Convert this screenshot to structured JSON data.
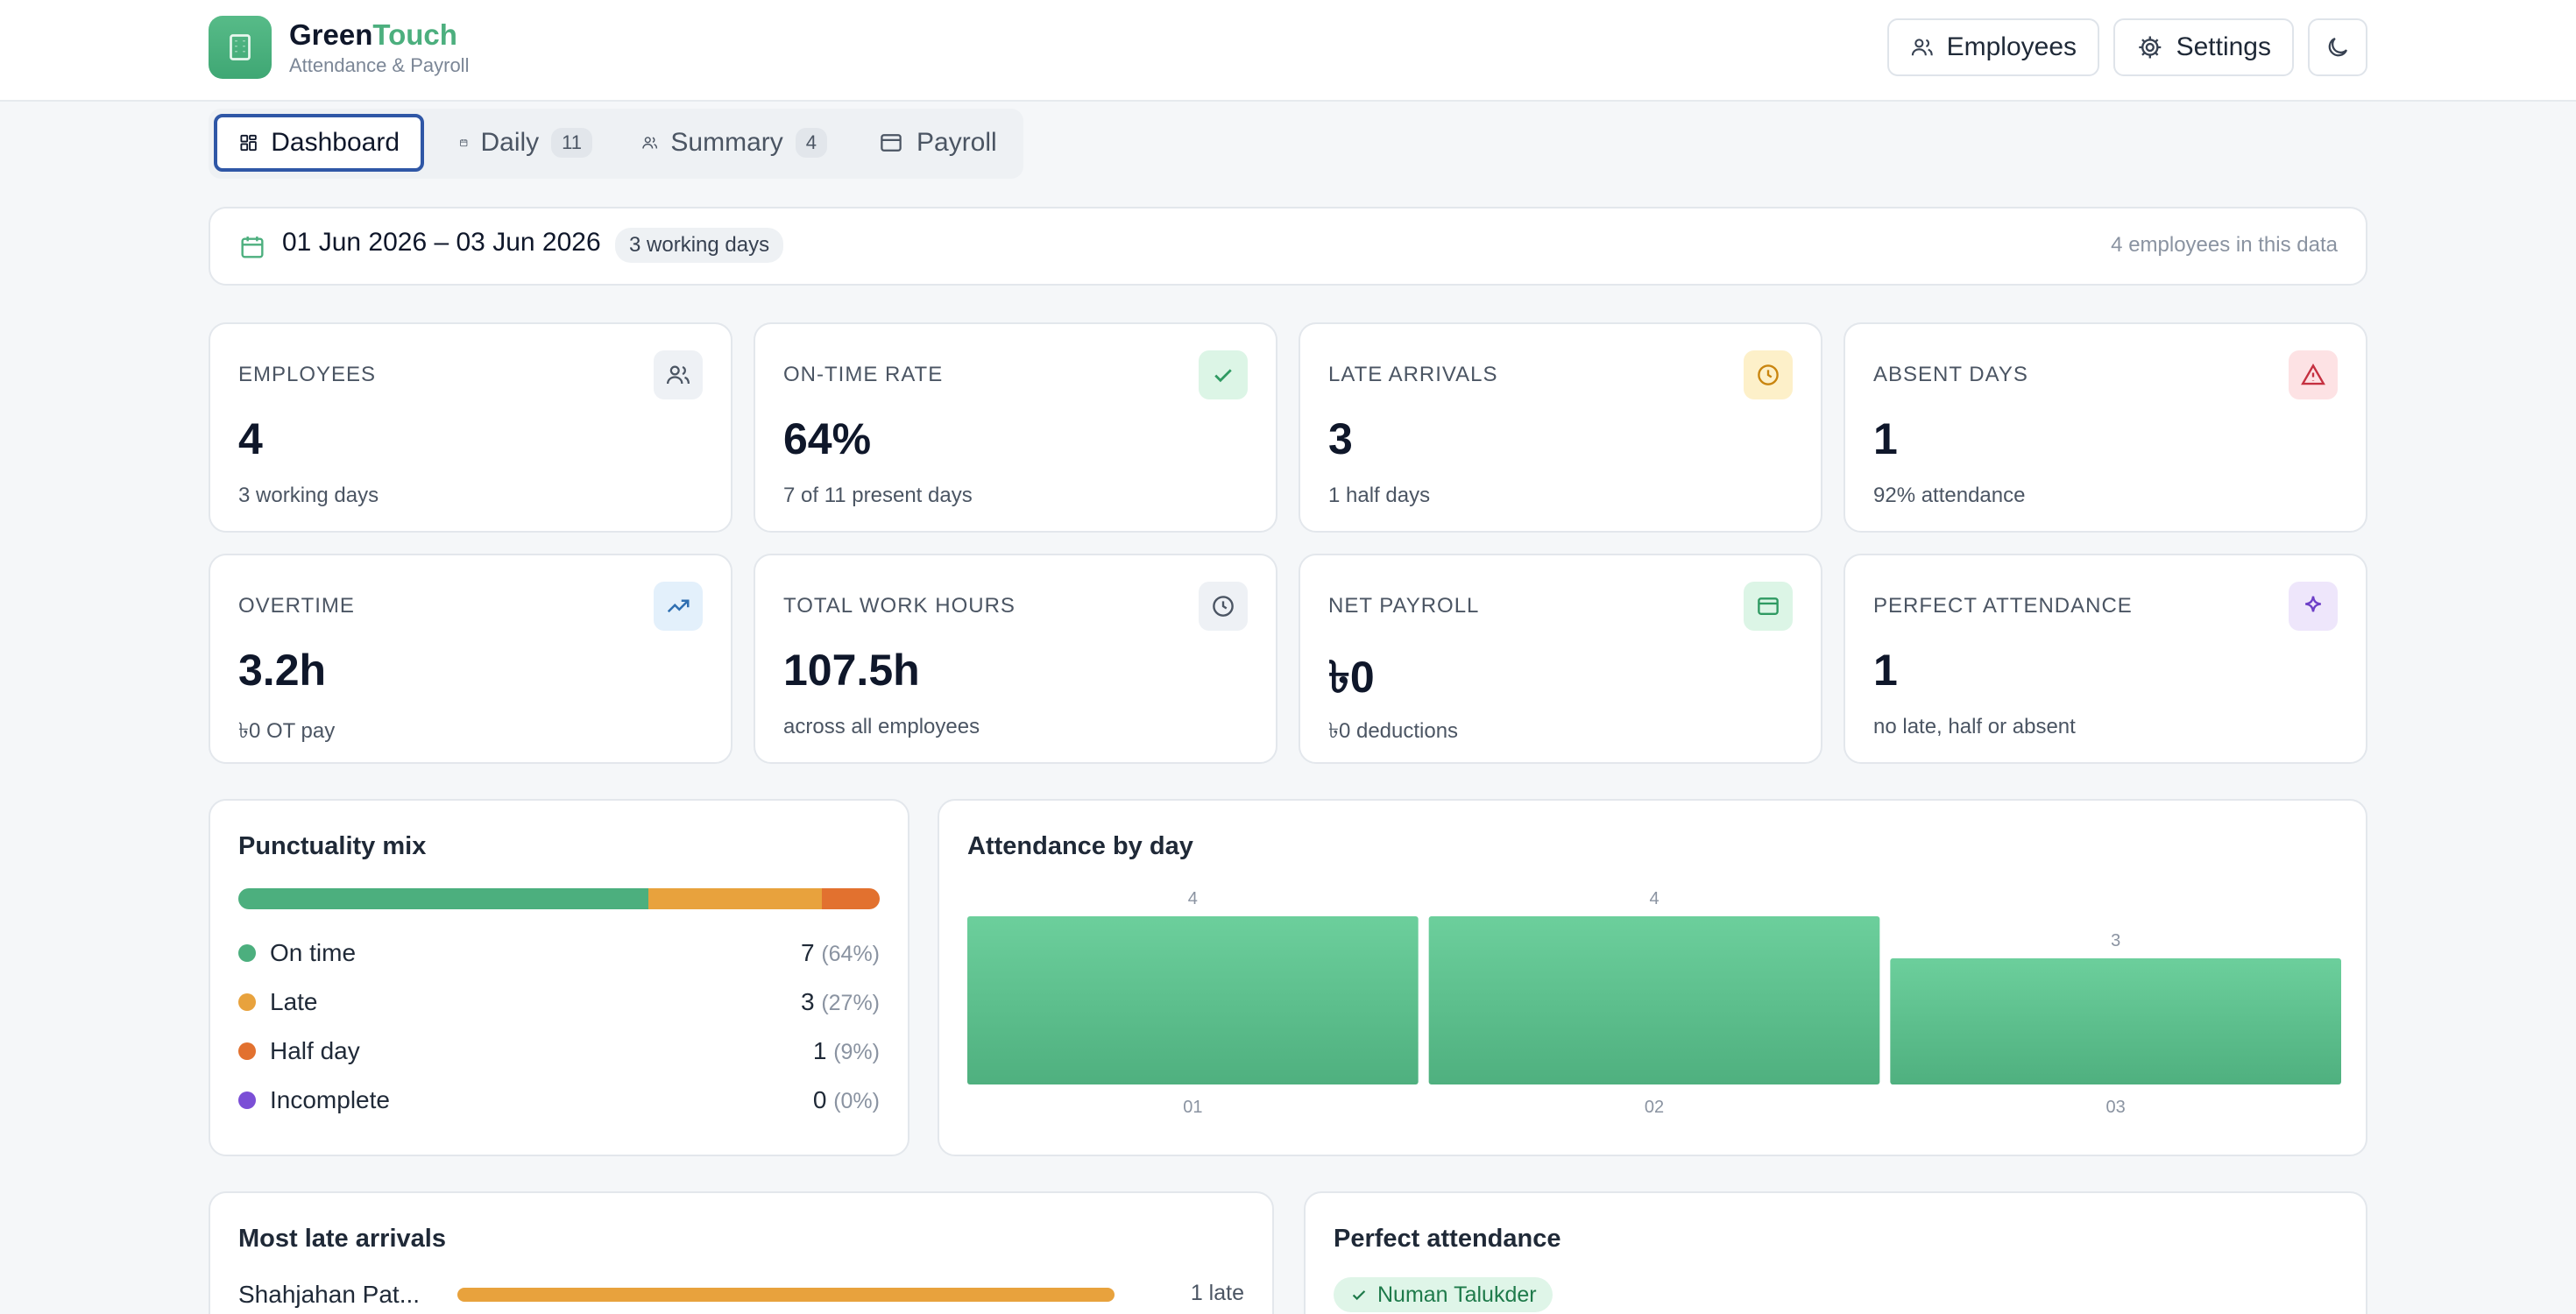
{
  "header": {
    "brand_part1": "Green",
    "brand_part2": "Touch",
    "subtitle": "Attendance & Payroll",
    "employees_btn": "Employees",
    "settings_btn": "Settings"
  },
  "tabs": [
    {
      "label": "Dashboard",
      "badge": "",
      "icon": "grid-icon"
    },
    {
      "label": "Daily",
      "badge": "11",
      "icon": "calendar-icon"
    },
    {
      "label": "Summary",
      "badge": "4",
      "icon": "users-icon"
    },
    {
      "label": "Payroll",
      "badge": "",
      "icon": "wallet-icon"
    }
  ],
  "range": {
    "text": "01 Jun 2026 – 03 Jun 2026",
    "badge": "3 working days",
    "right": "4 employees in this data"
  },
  "stats": [
    {
      "label": "EMPLOYEES",
      "value": "4",
      "sub": "3 working days",
      "icon": "users-icon",
      "icon_bg": "#eef1f5",
      "icon_color": "#4b5563"
    },
    {
      "label": "ON-TIME RATE",
      "value": "64%",
      "sub": "7 of 11 present days",
      "icon": "check-icon",
      "icon_bg": "#dcf5e6",
      "icon_color": "#2f9a62"
    },
    {
      "label": "LATE ARRIVALS",
      "value": "3",
      "sub": "1 half days",
      "icon": "clock-icon",
      "icon_bg": "#fdf0c9",
      "icon_color": "#c9850f"
    },
    {
      "label": "ABSENT DAYS",
      "value": "1",
      "sub": "92% attendance",
      "icon": "alert-triangle-icon",
      "icon_bg": "#fde2e4",
      "icon_color": "#c53040"
    },
    {
      "label": "OVERTIME",
      "value": "3.2h",
      "sub": "৳0 OT pay",
      "icon": "trending-up-icon",
      "icon_bg": "#e3f0fb",
      "icon_color": "#2f6fb1"
    },
    {
      "label": "TOTAL WORK HOURS",
      "value": "107.5h",
      "sub": "across all employees",
      "icon": "clock-icon",
      "icon_bg": "#eef1f5",
      "icon_color": "#4b5563"
    },
    {
      "label": "NET PAYROLL",
      "value": "৳0",
      "sub": "৳0 deductions",
      "icon": "wallet-icon",
      "icon_bg": "#dcf5e6",
      "icon_color": "#2f9a62"
    },
    {
      "label": "PERFECT ATTENDANCE",
      "value": "1",
      "sub": "no late, half or absent",
      "icon": "sparkle-icon",
      "icon_bg": "#eee6fb",
      "icon_color": "#6d3fc7"
    }
  ],
  "punctuality": {
    "title": "Punctuality mix",
    "items": [
      {
        "label": "On time",
        "count": "7",
        "pct": "(64%)",
        "color": "#4caf7e",
        "share": 0.64
      },
      {
        "label": "Late",
        "count": "3",
        "pct": "(27%)",
        "color": "#e8a23d",
        "share": 0.27
      },
      {
        "label": "Half day",
        "count": "1",
        "pct": "(9%)",
        "color": "#e2712f",
        "share": 0.09
      },
      {
        "label": "Incomplete",
        "count": "0",
        "pct": "(0%)",
        "color": "#7b4fd6",
        "share": 0
      }
    ]
  },
  "attendance_chart": {
    "title": "Attendance by day"
  },
  "chart_data": {
    "type": "bar",
    "categories": [
      "01",
      "02",
      "03"
    ],
    "values": [
      4,
      4,
      3
    ],
    "title": "Attendance by day",
    "ylim": [
      0,
      4
    ]
  },
  "late": {
    "title": "Most late arrivals",
    "rows": [
      {
        "name": "Shahjahan Pat...",
        "count": "1 late"
      }
    ]
  },
  "perfect": {
    "title": "Perfect attendance",
    "names": [
      "Numan Talukder"
    ]
  }
}
